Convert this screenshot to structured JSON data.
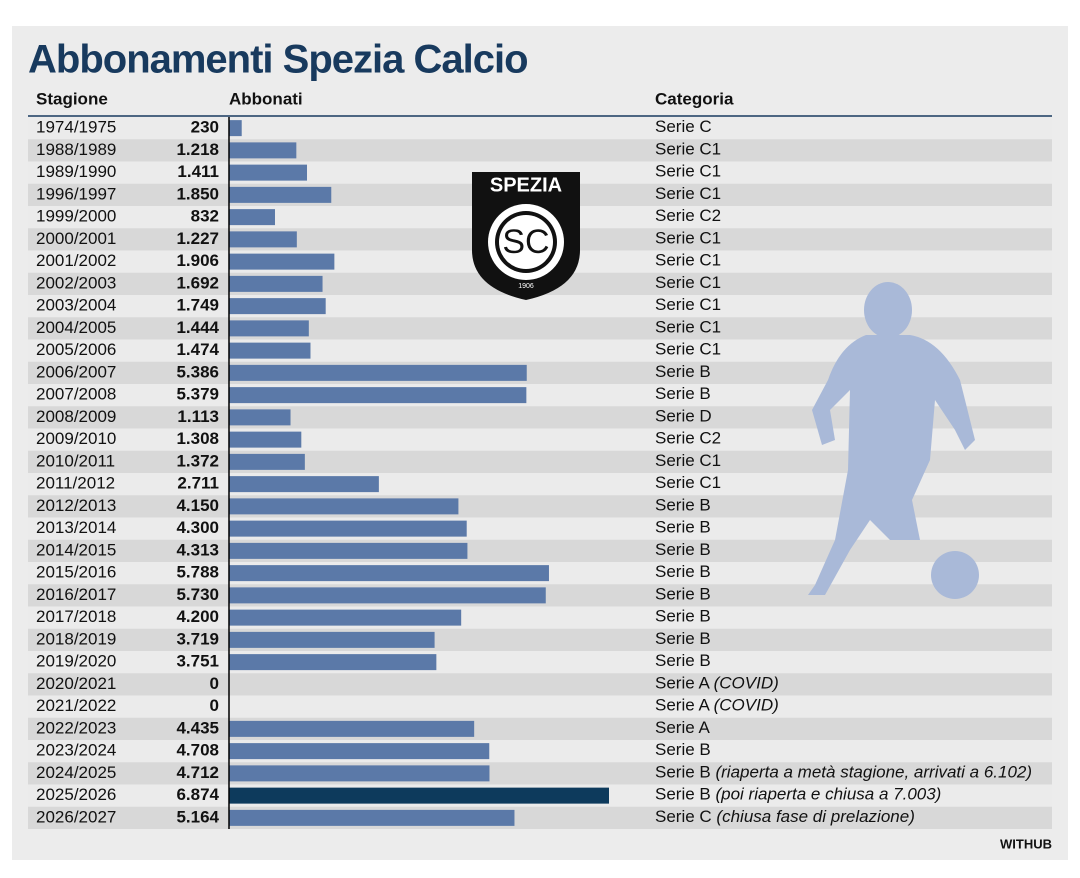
{
  "chart_data": {
    "type": "bar",
    "title": "Abbonamenti Spezia Calcio",
    "headers": [
      "Stagione",
      "Abbonati",
      "Categoria"
    ],
    "categories": [
      "1974/1975",
      "1988/1989",
      "1989/1990",
      "1996/1997",
      "1999/2000",
      "2000/2001",
      "2001/2002",
      "2002/2003",
      "2003/2004",
      "2004/2005",
      "2005/2006",
      "2006/2007",
      "2007/2008",
      "2008/2009",
      "2009/2010",
      "2010/2011",
      "2011/2012",
      "2012/2013",
      "2013/2014",
      "2014/2015",
      "2015/2016",
      "2016/2017",
      "2017/2018",
      "2018/2019",
      "2019/2020",
      "2020/2021",
      "2021/2022",
      "2022/2023",
      "2023/2024",
      "2024/2025",
      "2025/2026",
      "2026/2027"
    ],
    "values": [
      230,
      1218,
      1411,
      1850,
      832,
      1227,
      1906,
      1692,
      1749,
      1444,
      1474,
      5386,
      5379,
      1113,
      1308,
      1372,
      2711,
      4150,
      4300,
      4313,
      5788,
      5730,
      4200,
      3719,
      3751,
      0,
      0,
      4435,
      4708,
      4712,
      6874,
      5164
    ],
    "value_labels": [
      "230",
      "1.218",
      "1.411",
      "1.850",
      "832",
      "1.227",
      "1.906",
      "1.692",
      "1.749",
      "1.444",
      "1.474",
      "5.386",
      "5.379",
      "1.113",
      "1.308",
      "1.372",
      "2.711",
      "4.150",
      "4.300",
      "4.313",
      "5.788",
      "5.730",
      "4.200",
      "3.719",
      "3.751",
      "0",
      "0",
      "4.435",
      "4.708",
      "4.712",
      "6.874",
      "5.164"
    ],
    "colors": [
      "#5b79a8",
      "#5b79a8",
      "#5b79a8",
      "#5b79a8",
      "#5b79a8",
      "#5b79a8",
      "#5b79a8",
      "#5b79a8",
      "#5b79a8",
      "#5b79a8",
      "#5b79a8",
      "#5b79a8",
      "#5b79a8",
      "#5b79a8",
      "#5b79a8",
      "#5b79a8",
      "#5b79a8",
      "#5b79a8",
      "#5b79a8",
      "#5b79a8",
      "#5b79a8",
      "#5b79a8",
      "#5b79a8",
      "#5b79a8",
      "#5b79a8",
      "#5b79a8",
      "#5b79a8",
      "#5b79a8",
      "#5b79a8",
      "#5b79a8",
      "#0d3a5c",
      "#5b79a8"
    ],
    "categoria": [
      "Serie C",
      "Serie C1",
      "Serie C1",
      "Serie C1",
      "Serie C2",
      "Serie C1",
      "Serie C1",
      "Serie C1",
      "Serie C1",
      "Serie C1",
      "Serie C1",
      "Serie B",
      "Serie B",
      "Serie D",
      "Serie C2",
      "Serie C1",
      "Serie C1",
      "Serie B",
      "Serie B",
      "Serie B",
      "Serie B",
      "Serie B",
      "Serie B",
      "Serie B",
      "Serie B",
      "Serie A",
      "Serie A",
      "Serie A",
      "Serie B",
      "Serie B",
      "Serie B",
      "Serie C"
    ],
    "notes": [
      null,
      null,
      null,
      null,
      null,
      null,
      null,
      null,
      null,
      null,
      null,
      null,
      null,
      null,
      null,
      null,
      null,
      null,
      null,
      null,
      null,
      null,
      null,
      null,
      null,
      "(COVID)",
      "(COVID)",
      null,
      null,
      "(riaperta a metà stagione, arrivati a 6.102)",
      "(poi riaperta e chiusa a 7.003)",
      "(chiusa fase di prelazione)"
    ],
    "logo": {
      "name": "SPEZIA",
      "monogram": "SC",
      "year": "1906"
    },
    "credit": "WITHUB"
  }
}
